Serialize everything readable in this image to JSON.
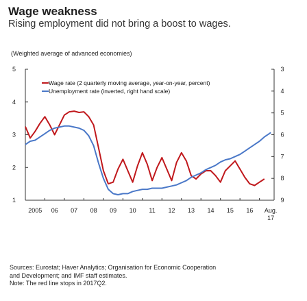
{
  "header": {
    "title": "Wage weakness",
    "subtitle": "Rising employment did not bring a boost to wages."
  },
  "chart_note": "(Weighted average of advanced economies)",
  "chart_data": {
    "type": "line",
    "title": "Wage weakness",
    "subtitle": "Rising employment did not bring a boost to wages.",
    "left_axis": {
      "range": [
        1,
        5
      ],
      "ticks": [
        "1",
        "2",
        "3",
        "4",
        "5"
      ]
    },
    "right_axis": {
      "range": [
        3,
        9
      ],
      "inverted": true,
      "ticks": [
        "3",
        "4",
        "5",
        "6",
        "7",
        "8",
        "9"
      ]
    },
    "x_tick_labels": [
      "2005",
      "06",
      "07",
      "08",
      "09",
      "10",
      "11",
      "12",
      "13",
      "14",
      "15",
      "16",
      "Aug."
    ],
    "x_tick_label_extra": "17",
    "legend_position": "top",
    "grid": false,
    "series": [
      {
        "name": "Wage rate (2 quarterly moving average, year-on-year, percent)",
        "axis": "left",
        "color": "#c0181c",
        "x": [
          2005.0,
          2005.25,
          2005.5,
          2005.75,
          2006.0,
          2006.25,
          2006.5,
          2006.75,
          2007.0,
          2007.25,
          2007.5,
          2007.75,
          2008.0,
          2008.25,
          2008.5,
          2008.75,
          2009.0,
          2009.25,
          2009.5,
          2009.75,
          2010.0,
          2010.25,
          2010.5,
          2010.75,
          2011.0,
          2011.25,
          2011.5,
          2011.75,
          2012.0,
          2012.25,
          2012.5,
          2012.75,
          2013.0,
          2013.25,
          2013.5,
          2013.75,
          2014.0,
          2014.25,
          2014.5,
          2014.75,
          2015.0,
          2015.25,
          2015.5,
          2015.75,
          2016.0,
          2016.25,
          2016.5,
          2016.75,
          2017.0,
          2017.25
        ],
        "values": [
          3.25,
          2.9,
          3.1,
          3.35,
          3.55,
          3.3,
          3.0,
          3.3,
          3.6,
          3.7,
          3.72,
          3.68,
          3.7,
          3.55,
          3.3,
          2.6,
          1.9,
          1.5,
          1.55,
          1.95,
          2.25,
          1.9,
          1.55,
          2.05,
          2.45,
          2.1,
          1.6,
          2.0,
          2.3,
          1.95,
          1.6,
          2.15,
          2.45,
          2.2,
          1.75,
          1.65,
          1.8,
          1.9,
          1.9,
          1.75,
          1.55,
          1.9,
          2.05,
          2.2,
          1.95,
          1.7,
          1.5,
          1.45,
          1.55,
          1.65
        ]
      },
      {
        "name": "Unemployment rate (inverted, right hand scale)",
        "axis": "right",
        "color": "#4a78c8",
        "x": [
          2005.0,
          2005.25,
          2005.5,
          2005.75,
          2006.0,
          2006.25,
          2006.5,
          2006.75,
          2007.0,
          2007.25,
          2007.5,
          2007.75,
          2008.0,
          2008.25,
          2008.5,
          2008.75,
          2009.0,
          2009.25,
          2009.5,
          2009.75,
          2010.0,
          2010.25,
          2010.5,
          2010.75,
          2011.0,
          2011.25,
          2011.5,
          2011.75,
          2012.0,
          2012.25,
          2012.5,
          2012.75,
          2013.0,
          2013.25,
          2013.5,
          2013.75,
          2014.0,
          2014.25,
          2014.5,
          2014.75,
          2015.0,
          2015.25,
          2015.5,
          2015.75,
          2016.0,
          2016.25,
          2016.5,
          2016.75,
          2017.0,
          2017.25,
          2017.5,
          2017.58
        ],
        "values": [
          6.45,
          6.3,
          6.25,
          6.1,
          5.95,
          5.8,
          5.7,
          5.65,
          5.6,
          5.6,
          5.65,
          5.7,
          5.8,
          6.05,
          6.5,
          7.3,
          8.0,
          8.5,
          8.7,
          8.75,
          8.7,
          8.7,
          8.6,
          8.55,
          8.5,
          8.5,
          8.45,
          8.45,
          8.45,
          8.4,
          8.35,
          8.3,
          8.2,
          8.1,
          7.95,
          7.85,
          7.75,
          7.6,
          7.5,
          7.4,
          7.25,
          7.15,
          7.1,
          7.0,
          6.9,
          6.75,
          6.6,
          6.45,
          6.3,
          6.1,
          5.95,
          5.9
        ]
      }
    ]
  },
  "sources": {
    "line1": "Sources: Eurostat; Haver Analytics; Organisation for Economic Cooperation",
    "line2": "and Development; and IMF staff estimates.",
    "line3": "Note: The red line stops in 2017Q2."
  }
}
